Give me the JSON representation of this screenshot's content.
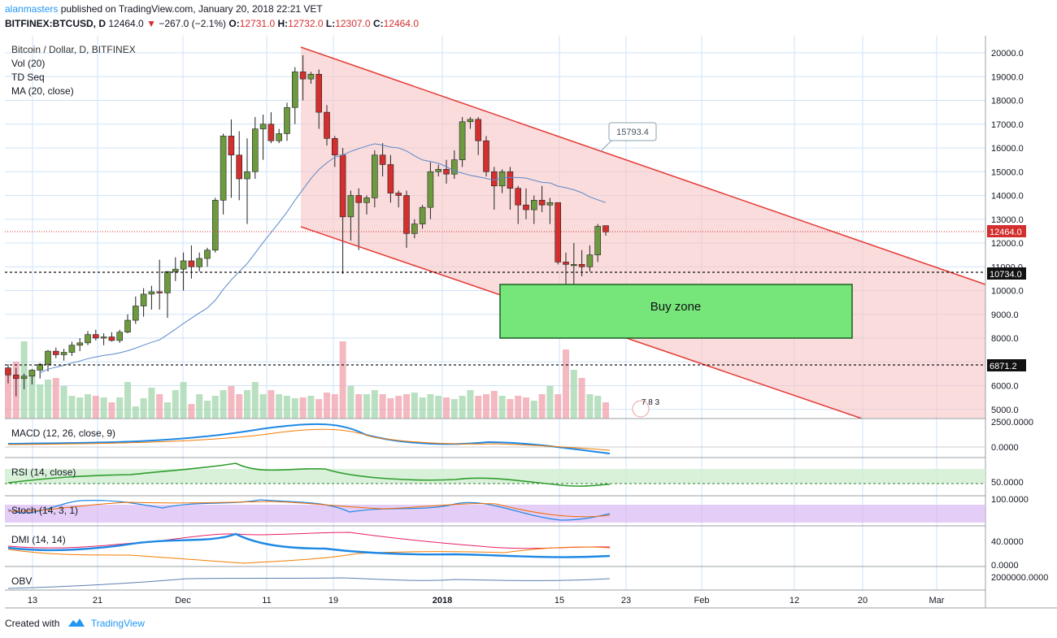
{
  "header": {
    "author": "alanmasters",
    "published_text": "published on TradingView.com, January 20, 2018 22:21 VET",
    "symbol": "BITFINEX:BTCUSD, D",
    "last": "12464.0",
    "change": "−267.0 (−2.1%)",
    "o_label": "O:",
    "o_val": "12731.0",
    "h_label": "H:",
    "h_val": "12732.0",
    "l_label": "L:",
    "l_val": "12307.0",
    "c_label": "C:",
    "c_val": "12464.0"
  },
  "legend": {
    "title": "Bitcoin / Dollar, D, BITFINEX",
    "vol": "Vol (20)",
    "td": "TD Seq",
    "ma": "MA (20, close)"
  },
  "indicators": {
    "macd": "MACD (12, 26, close, 9)",
    "rsi": "RSI (14, close)",
    "stoch": "Stoch (14, 3, 1)",
    "dmi": "DMI (14, 14)",
    "obv": "OBV"
  },
  "annotations": {
    "buy_zone": "Buy zone",
    "callout": "15793.4",
    "price_tag": "12464.0",
    "level_upper": "10734.0",
    "level_lower": "6871.2",
    "events_badge": "7 8 3"
  },
  "footer": {
    "created_with": "Created with",
    "brand": "TradingView"
  },
  "colors": {
    "up": "#6d9a3f",
    "down": "#d32f2f",
    "channel_fill": "#f6c4c4",
    "channel_line": "#e53935",
    "buy_zone": "#76e57a",
    "ma": "#5b87c9",
    "grid": "#cfe3f7"
  },
  "chart_data": {
    "type": "candlestick",
    "y_ticks": [
      5000,
      6000,
      7000,
      8000,
      9000,
      10000,
      11000,
      12000,
      13000,
      14000,
      15000,
      16000,
      17000,
      18000,
      19000,
      20000
    ],
    "y_tick_labels": [
      "5000.0",
      "6000.0",
      "7000.0",
      "8000.0",
      "9000.0",
      "10000.0",
      "11000.0",
      "12000.0",
      "13000.0",
      "14000.0",
      "15000.0",
      "16000.0",
      "17000.0",
      "18000.0",
      "19000.0",
      "20000.0"
    ],
    "x_ticks": [
      "13",
      "21",
      "Dec",
      "11",
      "19",
      "2018",
      "15",
      "23",
      "Feb",
      "12",
      "20",
      "Mar"
    ],
    "candles": [
      {
        "o": 6750,
        "h": 6900,
        "l": 6100,
        "c": 6450
      },
      {
        "o": 6450,
        "h": 6750,
        "l": 5550,
        "c": 6300
      },
      {
        "o": 6300,
        "h": 6500,
        "l": 5850,
        "c": 6400
      },
      {
        "o": 6400,
        "h": 6700,
        "l": 6050,
        "c": 6650
      },
      {
        "o": 6650,
        "h": 6950,
        "l": 6300,
        "c": 6900
      },
      {
        "o": 6900,
        "h": 7500,
        "l": 6600,
        "c": 7450
      },
      {
        "o": 7450,
        "h": 7600,
        "l": 7150,
        "c": 7300
      },
      {
        "o": 7300,
        "h": 7550,
        "l": 7050,
        "c": 7400
      },
      {
        "o": 7400,
        "h": 7850,
        "l": 7250,
        "c": 7700
      },
      {
        "o": 7700,
        "h": 8000,
        "l": 7450,
        "c": 7800
      },
      {
        "o": 7800,
        "h": 8300,
        "l": 7700,
        "c": 8150
      },
      {
        "o": 8150,
        "h": 8350,
        "l": 7900,
        "c": 8000
      },
      {
        "o": 8000,
        "h": 8200,
        "l": 7700,
        "c": 8050
      },
      {
        "o": 8050,
        "h": 8250,
        "l": 7850,
        "c": 7900
      },
      {
        "o": 7900,
        "h": 8350,
        "l": 7800,
        "c": 8250
      },
      {
        "o": 8250,
        "h": 9000,
        "l": 8200,
        "c": 8750
      },
      {
        "o": 8750,
        "h": 9750,
        "l": 8600,
        "c": 9350
      },
      {
        "o": 9350,
        "h": 10100,
        "l": 8900,
        "c": 9850
      },
      {
        "o": 9850,
        "h": 10200,
        "l": 9200,
        "c": 9950
      },
      {
        "o": 9950,
        "h": 11300,
        "l": 9200,
        "c": 9900
      },
      {
        "o": 9900,
        "h": 10800,
        "l": 8850,
        "c": 10800
      },
      {
        "o": 10800,
        "h": 11400,
        "l": 10400,
        "c": 10900
      },
      {
        "o": 10900,
        "h": 11600,
        "l": 10000,
        "c": 11250
      },
      {
        "o": 11250,
        "h": 11900,
        "l": 10500,
        "c": 11000
      },
      {
        "o": 11000,
        "h": 11600,
        "l": 10800,
        "c": 11350
      },
      {
        "o": 11350,
        "h": 11800,
        "l": 11000,
        "c": 11700
      },
      {
        "o": 11700,
        "h": 13900,
        "l": 11600,
        "c": 13800
      },
      {
        "o": 13800,
        "h": 16600,
        "l": 13200,
        "c": 16500
      },
      {
        "o": 16500,
        "h": 17200,
        "l": 13900,
        "c": 15700
      },
      {
        "o": 15700,
        "h": 16700,
        "l": 13800,
        "c": 14700
      },
      {
        "o": 14700,
        "h": 16400,
        "l": 12800,
        "c": 15000
      },
      {
        "o": 15000,
        "h": 17300,
        "l": 14700,
        "c": 16800
      },
      {
        "o": 16800,
        "h": 17400,
        "l": 15500,
        "c": 17000
      },
      {
        "o": 17000,
        "h": 17500,
        "l": 16200,
        "c": 16300
      },
      {
        "o": 16300,
        "h": 16800,
        "l": 16200,
        "c": 16600
      },
      {
        "o": 16600,
        "h": 17900,
        "l": 16300,
        "c": 17700
      },
      {
        "o": 17700,
        "h": 19400,
        "l": 17000,
        "c": 19200
      },
      {
        "o": 19200,
        "h": 19900,
        "l": 18000,
        "c": 18900
      },
      {
        "o": 18900,
        "h": 19200,
        "l": 18700,
        "c": 19100
      },
      {
        "o": 19100,
        "h": 19300,
        "l": 16800,
        "c": 17500
      },
      {
        "o": 17500,
        "h": 17800,
        "l": 16100,
        "c": 16400
      },
      {
        "o": 16400,
        "h": 16500,
        "l": 15200,
        "c": 15700
      },
      {
        "o": 15700,
        "h": 16000,
        "l": 10700,
        "c": 13100
      },
      {
        "o": 13100,
        "h": 14200,
        "l": 12100,
        "c": 14000
      },
      {
        "o": 14000,
        "h": 14300,
        "l": 11700,
        "c": 13700
      },
      {
        "o": 13700,
        "h": 14000,
        "l": 13200,
        "c": 13900
      },
      {
        "o": 13900,
        "h": 15900,
        "l": 13500,
        "c": 15700
      },
      {
        "o": 15700,
        "h": 16200,
        "l": 14800,
        "c": 15300
      },
      {
        "o": 15300,
        "h": 15700,
        "l": 13700,
        "c": 14100
      },
      {
        "o": 14100,
        "h": 14200,
        "l": 13500,
        "c": 14000
      },
      {
        "o": 14000,
        "h": 14200,
        "l": 11800,
        "c": 12400
      },
      {
        "o": 12400,
        "h": 13000,
        "l": 12200,
        "c": 12800
      },
      {
        "o": 12800,
        "h": 13600,
        "l": 12600,
        "c": 13500
      },
      {
        "o": 13500,
        "h": 15400,
        "l": 13000,
        "c": 15000
      },
      {
        "o": 15000,
        "h": 15300,
        "l": 14800,
        "c": 15100
      },
      {
        "o": 15100,
        "h": 15500,
        "l": 14500,
        "c": 14900
      },
      {
        "o": 14900,
        "h": 15900,
        "l": 14700,
        "c": 15500
      },
      {
        "o": 15500,
        "h": 17300,
        "l": 15200,
        "c": 17100
      },
      {
        "o": 17100,
        "h": 17300,
        "l": 16800,
        "c": 17200
      },
      {
        "o": 17200,
        "h": 17300,
        "l": 15700,
        "c": 16300
      },
      {
        "o": 16300,
        "h": 16500,
        "l": 14800,
        "c": 15000
      },
      {
        "o": 15000,
        "h": 15200,
        "l": 13400,
        "c": 14400
      },
      {
        "o": 14400,
        "h": 15100,
        "l": 14100,
        "c": 15000
      },
      {
        "o": 15000,
        "h": 15200,
        "l": 13400,
        "c": 14300
      },
      {
        "o": 14300,
        "h": 14400,
        "l": 12800,
        "c": 13600
      },
      {
        "o": 13600,
        "h": 14300,
        "l": 13000,
        "c": 13400
      },
      {
        "o": 13400,
        "h": 14000,
        "l": 12800,
        "c": 13800
      },
      {
        "o": 13800,
        "h": 14400,
        "l": 13300,
        "c": 13600
      },
      {
        "o": 13600,
        "h": 13900,
        "l": 12800,
        "c": 13700
      },
      {
        "o": 13700,
        "h": 13700,
        "l": 11100,
        "c": 11200
      },
      {
        "o": 11200,
        "h": 11600,
        "l": 10000,
        "c": 11100
      },
      {
        "o": 11100,
        "h": 12000,
        "l": 9200,
        "c": 11100
      },
      {
        "o": 11100,
        "h": 11700,
        "l": 10600,
        "c": 11000
      },
      {
        "o": 11000,
        "h": 11900,
        "l": 10800,
        "c": 11500
      },
      {
        "o": 11500,
        "h": 12800,
        "l": 11200,
        "c": 12700
      },
      {
        "o": 12731,
        "h": 12732,
        "l": 12307,
        "c": 12464
      }
    ]
  }
}
